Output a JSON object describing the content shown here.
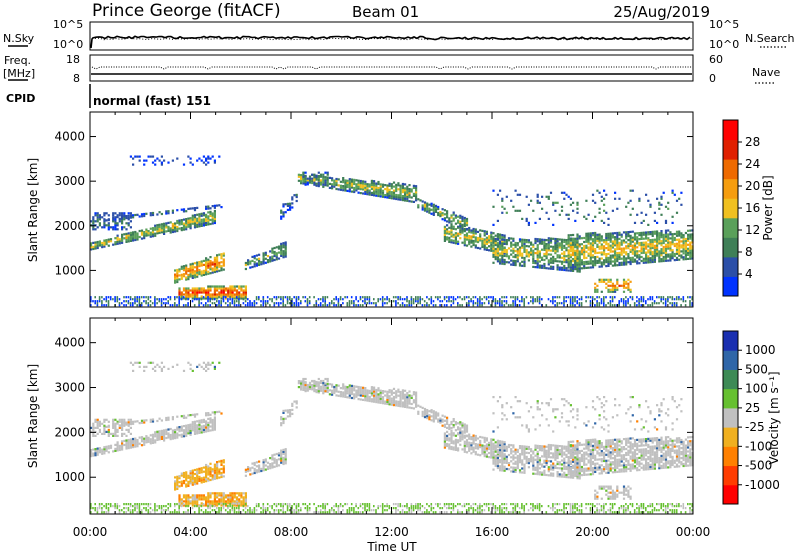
{
  "header": {
    "station": "Prince George (fitACF)",
    "beam": "Beam 01",
    "date": "25/Aug/2019"
  },
  "labels": {
    "nsky": "N.Sky",
    "nsearch": "N.Search",
    "freq_line1": "Freq.",
    "freq_line2": "[MHz]",
    "nave": "Nave",
    "cpid": "CPID",
    "mode": "normal (fast) 151"
  },
  "noise_panel": {
    "left_ticks": [
      "10^5",
      "10^0"
    ],
    "right_ticks": [
      "10^5",
      "10^0"
    ]
  },
  "freq_panel": {
    "left_ticks": [
      "18",
      "8"
    ],
    "right_ticks": [
      "60",
      "0"
    ]
  },
  "colors": {
    "power": [
      "#0033ff",
      "#2b4fa8",
      "#3f7f57",
      "#5aa05a",
      "#f0c020",
      "#f59d0f",
      "#ee6a00",
      "#e02000",
      "#ff0000"
    ],
    "velocity": [
      "#1a2fb0",
      "#2f66a8",
      "#3d8a55",
      "#66c030",
      "#c0c0c0",
      "#f0b020",
      "#ff8000",
      "#ff3c00",
      "#ff0000"
    ]
  },
  "chart_data": [
    {
      "type": "heatmap",
      "name": "power",
      "ylabel": "Slant Range [km]",
      "ylim": [
        180,
        4550
      ],
      "yticks": [
        1000,
        2000,
        3000,
        4000
      ],
      "xlim": [
        0,
        24
      ],
      "xticks": [
        0,
        4,
        8,
        12,
        16,
        20,
        24
      ],
      "colorbar": {
        "label": "Power [dB]",
        "range": [
          0,
          32
        ],
        "ticks": [
          4,
          8,
          12,
          16,
          20,
          24,
          28
        ]
      }
    },
    {
      "type": "heatmap",
      "name": "velocity",
      "ylabel": "Slant Range [km]",
      "xlabel": "Time UT",
      "ylim": [
        180,
        4550
      ],
      "yticks": [
        1000,
        2000,
        3000,
        4000
      ],
      "xlim": [
        0,
        24
      ],
      "xticks": [
        0,
        4,
        8,
        12,
        16,
        20,
        24
      ],
      "xticklabels": [
        "00:00",
        "04:00",
        "08:00",
        "12:00",
        "16:00",
        "20:00",
        "00:00"
      ],
      "colorbar": {
        "label": "Velocity [m s⁻¹]",
        "tick_labels": [
          "1000",
          "500",
          "100",
          "25",
          "-25",
          "-100",
          "-500",
          "-1000"
        ]
      }
    }
  ]
}
